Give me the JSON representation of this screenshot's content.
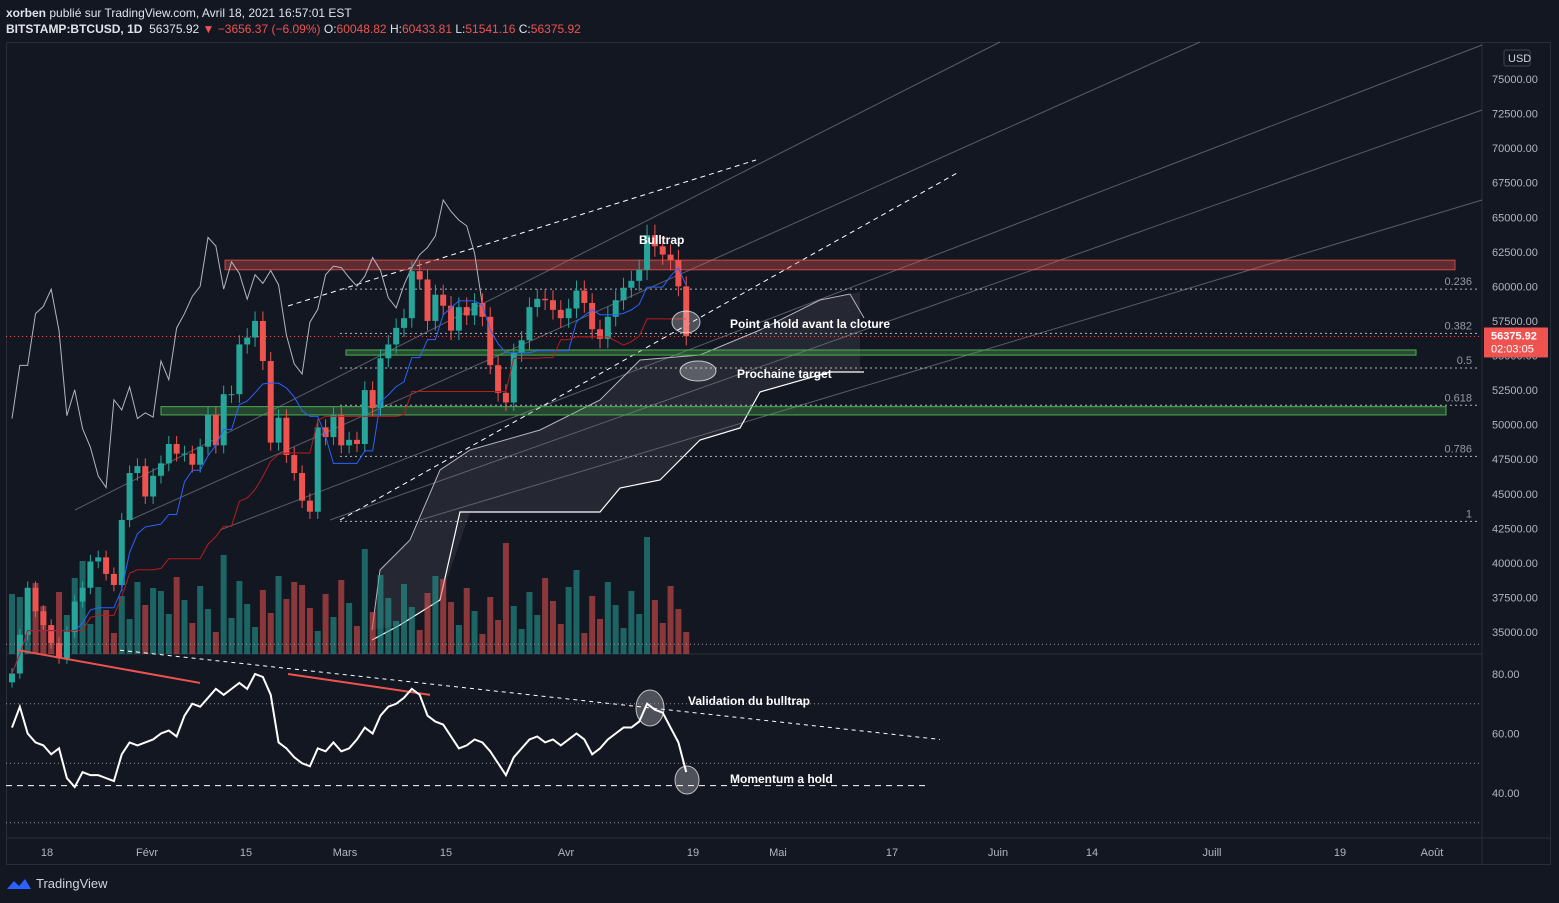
{
  "header": {
    "publisher": "xorben",
    "published_text": " publié sur TradingView.com, Avril 18, 2021 16:57:01 EST",
    "symbol": "BITSTAMP:BTCUSD, 1D",
    "last": "56375.92",
    "change": "−3656.37 (−6.09%)",
    "o_label": "O:",
    "o": "60048.82",
    "h_label": "H:",
    "h": "60433.81",
    "l_label": "L:",
    "l": "51541.16",
    "c_label": "C:",
    "c": "56375.92"
  },
  "price_axis": {
    "currency": "USD",
    "ticks": [
      "75000.00",
      "72500.00",
      "70000.00",
      "67500.00",
      "65000.00",
      "62500.00",
      "60000.00",
      "57500.00",
      "55000.00",
      "52500.00",
      "50000.00",
      "47500.00",
      "45000.00",
      "42500.00",
      "40000.00",
      "37500.00",
      "35000.00"
    ],
    "last_price": "56375.92",
    "countdown": "02:03:05"
  },
  "rsi_axis": {
    "ticks": [
      "80.00",
      "60.00",
      "40.00"
    ]
  },
  "time_axis": {
    "ticks": [
      "18",
      "Févr",
      "15",
      "Mars",
      "15",
      "Avr",
      "19",
      "Mai",
      "17",
      "Juin",
      "14",
      "Juill",
      "19",
      "Août"
    ]
  },
  "fib_levels": [
    "0.236",
    "0.382",
    "0.5",
    "0.618",
    "0.786",
    "1"
  ],
  "annotations": {
    "bulltrap": "Bulltrap",
    "hold_point": "Point a hold avant la cloture",
    "next_target": "Prochaine target",
    "validation": "Validation du bulltrap",
    "momentum": "Momentum a hold"
  },
  "colors": {
    "up": "#26a69a",
    "down": "#ef5350",
    "background": "#131722",
    "resistance": "#ef5350",
    "support": "#4caf50"
  },
  "footer": {
    "brand": "TradingView",
    "logo_icon": "tradingview-logo-icon"
  },
  "chart_data": [
    {
      "type": "candlestick",
      "symbol": "BITSTAMP:BTCUSD",
      "timeframe": "1D",
      "ylim": [
        33500,
        77500
      ],
      "last_close": 56375.92,
      "close_path": [
        32000,
        34800,
        38200,
        36500,
        35500,
        34200,
        33100,
        35000,
        37200,
        38200,
        40100,
        40400,
        39200,
        38400,
        43100,
        46500,
        47000,
        44800,
        46300,
        47200,
        48600,
        47900,
        47900,
        47100,
        48400,
        50700,
        48500,
        52200,
        52200,
        55800,
        56300,
        57500,
        54600,
        48700,
        50500,
        47800,
        46500,
        44500,
        43700,
        49800,
        49100,
        50700,
        48500,
        48900,
        48600,
        52500,
        51200,
        54800,
        55800,
        57000,
        57700,
        61100,
        60500,
        57500,
        59400,
        58600,
        56800,
        58500,
        57900,
        58800,
        57800,
        54300,
        52300,
        51600,
        55200,
        56100,
        58500,
        59100,
        59000,
        58300,
        57700,
        58400,
        59700,
        58800,
        56900,
        56200,
        57800,
        59000,
        59900,
        60400,
        61200,
        63700,
        62900,
        62300,
        61900,
        60000,
        56400
      ],
      "resistance_zone": [
        61200,
        61900
      ],
      "support_zones": [
        [
          55100,
          55400
        ],
        [
          50700,
          51300
        ]
      ],
      "fibonacci": [
        {
          "ratio": "0.236",
          "price": 59800
        },
        {
          "ratio": "0.382",
          "price": 56600
        },
        {
          "ratio": "0.5",
          "price": 54100
        },
        {
          "ratio": "0.618",
          "price": 51400
        },
        {
          "ratio": "0.786",
          "price": 47700
        },
        {
          "ratio": "1",
          "price": 43000
        }
      ]
    },
    {
      "type": "line",
      "name": "RSI",
      "ylim": [
        28,
        95
      ],
      "values": [
        62,
        69,
        60,
        57,
        56,
        53,
        55,
        45,
        42,
        47,
        46,
        46,
        45,
        44,
        53,
        57,
        56,
        57,
        58,
        60,
        61,
        59,
        66,
        70,
        69,
        72,
        75,
        73,
        75,
        77,
        75,
        80,
        79,
        73,
        57,
        55,
        52,
        50,
        49,
        55,
        54,
        57,
        54,
        55,
        58,
        62,
        60,
        66,
        69,
        70,
        72,
        75,
        73,
        66,
        64,
        63,
        59,
        55,
        56,
        58,
        57,
        54,
        50,
        46,
        52,
        55,
        58,
        59,
        57,
        58,
        56,
        58,
        60,
        58,
        53,
        55,
        58,
        60,
        62,
        62,
        64,
        70,
        68,
        67,
        62,
        57,
        47
      ]
    }
  ]
}
